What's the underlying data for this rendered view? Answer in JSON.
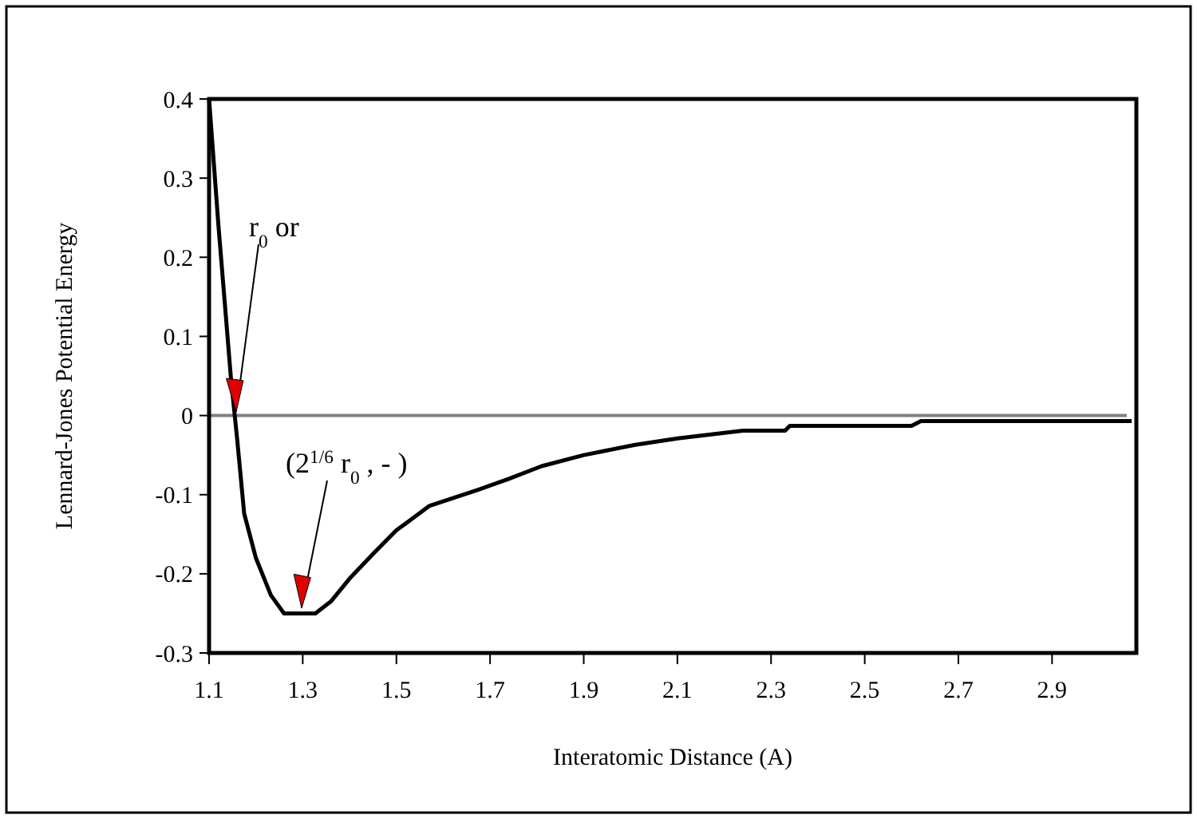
{
  "chart_data": {
    "type": "line",
    "xlabel": "Interatomic Distance (A)",
    "ylabel": "Lennard-Jones Potential Energy",
    "xlim": [
      1.1,
      3.08
    ],
    "xticks": [
      1.1,
      1.3,
      1.5,
      1.7,
      1.9,
      2.1,
      2.3,
      2.5,
      2.7,
      2.9
    ],
    "ylim": [
      -0.3,
      0.4
    ],
    "yticks": [
      -0.3,
      -0.2,
      -0.1,
      0,
      0.1,
      0.2,
      0.3,
      0.4
    ],
    "grid": false,
    "marker": "none",
    "line_style": "solid",
    "ref_lines": [
      {
        "axis": "y",
        "value": 0,
        "color": "#808080"
      }
    ],
    "annotations": [
      "r$_{0}$ or",
      "(2$^{1/6}$ r$_{0}$ , -  )"
    ],
    "series": [
      {
        "color": "#000000",
        "x": [
          1.1,
          1.12,
          1.147,
          1.16,
          1.175,
          1.2,
          1.232,
          1.26,
          1.327,
          1.36,
          1.4,
          1.45,
          1.5,
          1.571,
          1.673,
          1.74,
          1.81,
          1.9,
          2.01,
          2.1,
          2.24,
          2.33,
          2.34,
          2.6,
          2.62,
          3.07
        ],
        "values": [
          0.4,
          0.24,
          0.045,
          -0.03,
          -0.124,
          -0.18,
          -0.227,
          -0.25,
          -0.25,
          -0.235,
          -0.206,
          -0.175,
          -0.145,
          -0.114,
          -0.094,
          -0.08,
          -0.064,
          -0.05,
          -0.037,
          -0.029,
          -0.019,
          -0.019,
          -0.013,
          -0.013,
          -0.007,
          -0.007
        ]
      }
    ]
  }
}
